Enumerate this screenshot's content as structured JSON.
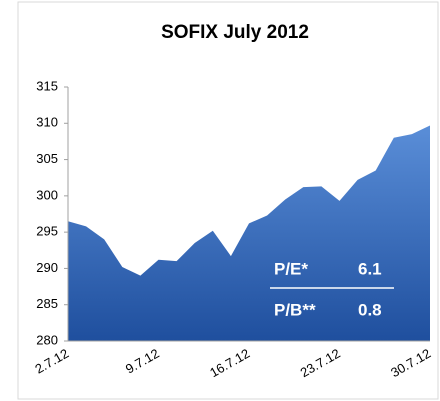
{
  "chart_data": {
    "type": "area",
    "title": "SOFIX July 2012",
    "categories": [
      "2.7.12",
      null,
      null,
      null,
      null,
      "9.7.12",
      null,
      null,
      null,
      null,
      "16.7.12",
      null,
      null,
      null,
      null,
      "23.7.12",
      null,
      null,
      null,
      null,
      "30.7.12"
    ],
    "series": [
      {
        "name": "SOFIX",
        "color": "#2f63b8",
        "values": [
          296.5,
          295.8,
          294,
          290.2,
          289,
          291.2,
          291,
          293.5,
          295.2,
          291.7,
          296.2,
          297.3,
          299.5,
          301.2,
          301.3,
          299.3,
          302.2,
          303.5,
          308,
          308.5,
          309.7
        ]
      }
    ],
    "ylim": [
      280,
      315
    ],
    "yticks": [
      280,
      285,
      290,
      295,
      300,
      305,
      310,
      315
    ],
    "annotations": [
      {
        "label": "P/E*",
        "value": "6.1"
      },
      {
        "label": "P/B**",
        "value": "0.8"
      }
    ]
  }
}
